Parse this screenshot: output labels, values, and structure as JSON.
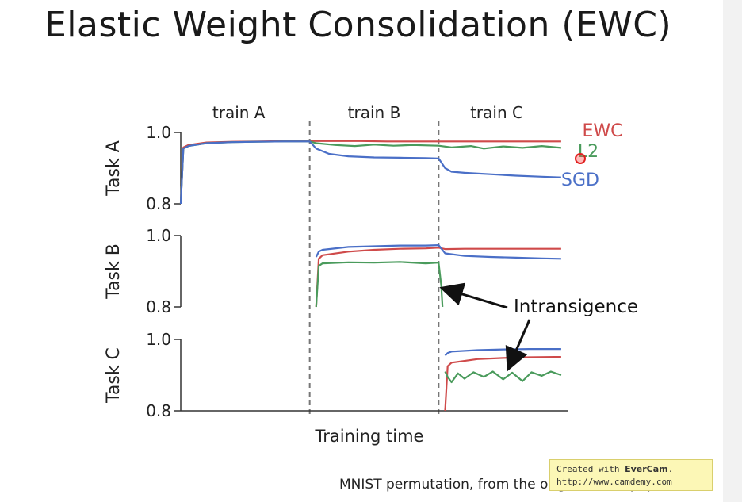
{
  "slide": {
    "title": "Elastic Weight Consolidation (EWC)",
    "caption": "MNIST permutation, from the original EWC paper"
  },
  "watermark": {
    "line1_prefix": "Created with ",
    "brand": "EverCam",
    "line1_suffix": ".",
    "url": "http://www.camdemy.com"
  },
  "chart_data": {
    "type": "line",
    "title": "",
    "xlabel": "Training time",
    "phases": [
      "train A",
      "train B",
      "train C"
    ],
    "x_range": [
      0,
      3
    ],
    "phase_boundaries": [
      1,
      2
    ],
    "colors": {
      "EWC": "#cf4a4a",
      "L2": "#4a9b5c",
      "SGD": "#4a6fc7"
    },
    "annotation": "Intransigence",
    "panels": [
      {
        "ylabel": "Task A",
        "ylim": [
          0.8,
          1.0
        ],
        "yticks": [
          "1.0",
          "0.8"
        ],
        "legend": [
          {
            "name": "EWC",
            "label": "EWC"
          },
          {
            "name": "L2",
            "label": "L2"
          },
          {
            "name": "SGD",
            "label": "SGD"
          }
        ],
        "series": [
          {
            "name": "EWC",
            "x": [
              0,
              0.02,
              0.06,
              0.2,
              0.4,
              0.6,
              0.8,
              1.0,
              1.2,
              1.4,
              1.6,
              1.8,
              2.0,
              2.2,
              2.4,
              2.6,
              2.8,
              2.95
            ],
            "y": [
              0.8,
              0.958,
              0.965,
              0.972,
              0.974,
              0.975,
              0.976,
              0.976,
              0.976,
              0.976,
              0.975,
              0.975,
              0.975,
              0.975,
              0.975,
              0.975,
              0.975,
              0.975
            ]
          },
          {
            "name": "L2",
            "x": [
              0,
              0.02,
              0.06,
              0.2,
              0.4,
              0.6,
              0.8,
              1.0,
              1.05,
              1.2,
              1.35,
              1.5,
              1.65,
              1.8,
              2.0,
              2.1,
              2.25,
              2.35,
              2.5,
              2.65,
              2.8,
              2.95
            ],
            "y": [
              0.8,
              0.955,
              0.962,
              0.97,
              0.973,
              0.974,
              0.975,
              0.975,
              0.97,
              0.965,
              0.962,
              0.966,
              0.963,
              0.965,
              0.963,
              0.958,
              0.962,
              0.955,
              0.961,
              0.957,
              0.962,
              0.957
            ]
          },
          {
            "name": "SGD",
            "x": [
              0,
              0.02,
              0.06,
              0.2,
              0.4,
              0.6,
              0.8,
              1.0,
              1.05,
              1.15,
              1.3,
              1.5,
              1.7,
              1.9,
              2.0,
              2.05,
              2.1,
              2.2,
              2.4,
              2.6,
              2.8,
              2.95
            ],
            "y": [
              0.8,
              0.955,
              0.962,
              0.97,
              0.973,
              0.974,
              0.975,
              0.975,
              0.955,
              0.94,
              0.933,
              0.93,
              0.929,
              0.928,
              0.927,
              0.9,
              0.89,
              0.887,
              0.883,
              0.879,
              0.876,
              0.874
            ]
          }
        ]
      },
      {
        "ylabel": "Task B",
        "ylim": [
          0.8,
          1.0
        ],
        "yticks": [
          "1.0",
          "0.8"
        ],
        "series": [
          {
            "name": "EWC",
            "x": [
              1.05,
              1.07,
              1.1,
              1.3,
              1.5,
              1.7,
              1.9,
              2.0,
              2.05,
              2.2,
              2.4,
              2.6,
              2.8,
              2.95
            ],
            "y": [
              0.8,
              0.935,
              0.945,
              0.955,
              0.96,
              0.963,
              0.964,
              0.966,
              0.962,
              0.963,
              0.963,
              0.963,
              0.963,
              0.963
            ]
          },
          {
            "name": "L2",
            "x": [
              1.05,
              1.07,
              1.1,
              1.3,
              1.5,
              1.7,
              1.9,
              2.0,
              2.02,
              2.03
            ],
            "y": [
              0.8,
              0.915,
              0.922,
              0.925,
              0.924,
              0.926,
              0.922,
              0.924,
              0.86,
              0.8
            ]
          },
          {
            "name": "SGD",
            "x": [
              1.05,
              1.07,
              1.1,
              1.3,
              1.5,
              1.7,
              1.9,
              2.0,
              2.05,
              2.2,
              2.4,
              2.6,
              2.8,
              2.95
            ],
            "y": [
              0.94,
              0.955,
              0.96,
              0.968,
              0.97,
              0.972,
              0.972,
              0.973,
              0.95,
              0.943,
              0.94,
              0.938,
              0.936,
              0.935
            ]
          }
        ]
      },
      {
        "ylabel": "Task C",
        "ylim": [
          0.8,
          1.0
        ],
        "yticks": [
          "1.0",
          "0.8"
        ],
        "series": [
          {
            "name": "EWC",
            "x": [
              2.05,
              2.07,
              2.1,
              2.3,
              2.5,
              2.7,
              2.9,
              2.95
            ],
            "y": [
              0.8,
              0.925,
              0.935,
              0.945,
              0.948,
              0.95,
              0.951,
              0.951
            ]
          },
          {
            "name": "L2",
            "x": [
              2.05,
              2.07,
              2.1,
              2.15,
              2.2,
              2.27,
              2.35,
              2.42,
              2.5,
              2.57,
              2.65,
              2.72,
              2.8,
              2.87,
              2.95
            ],
            "y": [
              0.91,
              0.895,
              0.88,
              0.905,
              0.89,
              0.908,
              0.895,
              0.91,
              0.888,
              0.907,
              0.883,
              0.908,
              0.898,
              0.91,
              0.9
            ]
          },
          {
            "name": "SGD",
            "x": [
              2.05,
              2.07,
              2.1,
              2.3,
              2.5,
              2.7,
              2.9,
              2.95
            ],
            "y": [
              0.955,
              0.962,
              0.966,
              0.97,
              0.972,
              0.973,
              0.973,
              0.973
            ]
          }
        ]
      }
    ]
  }
}
